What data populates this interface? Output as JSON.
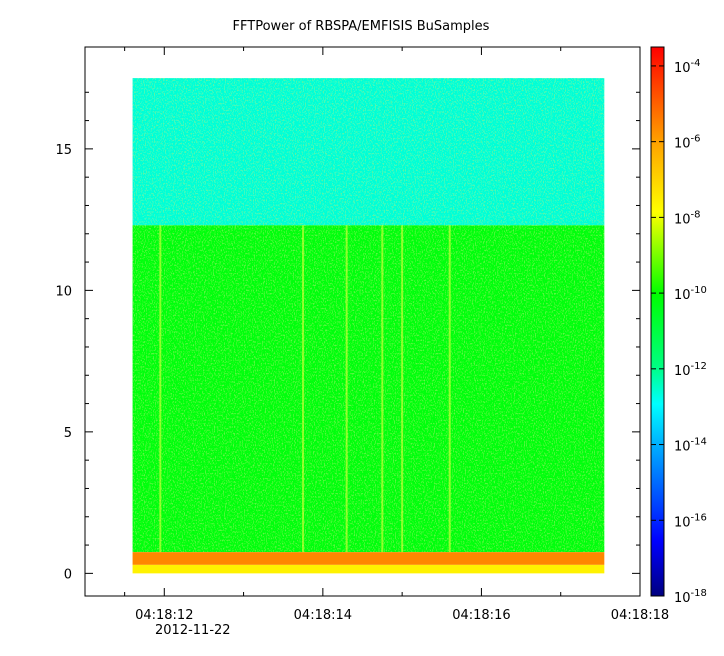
{
  "chart_data": {
    "type": "heatmap",
    "title": "FFTPower of RBSPA/EMFISIS  BuSamples",
    "xlabel": "",
    "ylabel": "",
    "x": {
      "range_seconds": [
        "04:18:11.0",
        "04:18:18.0"
      ],
      "major_ticks": [
        {
          "label": "04:18:12",
          "t": 12
        },
        {
          "label": "04:18:14",
          "t": 14
        },
        {
          "label": "04:18:16",
          "t": 16
        },
        {
          "label": "04:18:18",
          "t": 18
        }
      ],
      "minor_ticks": [
        11.5,
        13,
        15,
        17
      ],
      "date_label": "2012-11-22",
      "data_extent": [
        11.6,
        17.55
      ]
    },
    "y": {
      "range": [
        -0.8,
        18.6
      ],
      "ticks": [
        {
          "label": "0",
          "v": 0
        },
        {
          "label": "5",
          "v": 5
        },
        {
          "label": "10",
          "v": 10
        },
        {
          "label": "15",
          "v": 15
        }
      ],
      "data_extent": [
        0,
        17.5
      ]
    },
    "colorbar": {
      "scale": "log",
      "range_exponent": [
        -18,
        -3.5
      ],
      "ticks": [
        {
          "base": "10",
          "exp": "-4",
          "e": -4
        },
        {
          "base": "10",
          "exp": "-6",
          "e": -6
        },
        {
          "base": "10",
          "exp": "-8",
          "e": -8
        },
        {
          "base": "10",
          "exp": "-10",
          "e": -10
        },
        {
          "base": "10",
          "exp": "-12",
          "e": -12
        },
        {
          "base": "10",
          "exp": "-14",
          "e": -14
        },
        {
          "base": "10",
          "exp": "-16",
          "e": -16
        },
        {
          "base": "10",
          "exp": "-18",
          "e": -18
        }
      ],
      "colormap": "rainbow",
      "colors": [
        "#00007f",
        "#0000ff",
        "#00ffff",
        "#00ff00",
        "#ffff00",
        "#ff7f00",
        "#ff0000"
      ]
    },
    "bands": [
      {
        "y_min": 12.3,
        "y_max": 17.5,
        "log_power": -12.6
      },
      {
        "y_min": 0.75,
        "y_max": 12.3,
        "log_power": -10.2
      },
      {
        "y_min": 0.3,
        "y_max": 0.75,
        "log_power": -5.6
      },
      {
        "y_min": 0,
        "y_max": 0.3,
        "log_power": -7.6
      }
    ],
    "vertical_streaks": [
      11.95,
      13.75,
      14.3,
      14.75,
      15.0,
      15.6
    ]
  }
}
